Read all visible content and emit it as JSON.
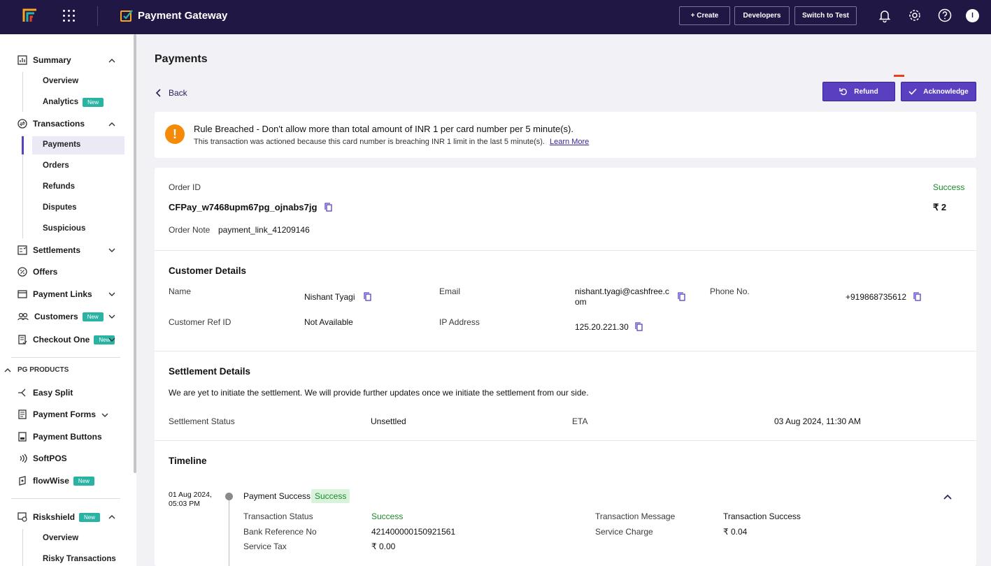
{
  "header": {
    "product_name": "Payment Gateway",
    "create_label": "+ Create",
    "developers_label": "Developers",
    "switch_label": "Switch to Test",
    "avatar_initial": "I",
    "brand_color": "#211745"
  },
  "sidebar": {
    "summary": "Summary",
    "overview": "Overview",
    "analytics": "Analytics",
    "transactions": "Transactions",
    "payments": "Payments",
    "orders": "Orders",
    "refunds": "Refunds",
    "disputes": "Disputes",
    "suspicious": "Suspicious",
    "settlements": "Settlements",
    "offers": "Offers",
    "payment_links": "Payment Links",
    "customers": "Customers",
    "checkout_one": "Checkout One",
    "pg_products": "PG PRODUCTS",
    "easy_split": "Easy Split",
    "payment_forms": "Payment Forms",
    "payment_buttons": "Payment Buttons",
    "softpos": "SoftPOS",
    "flowwise": "flowWise",
    "riskshield": "Riskshield",
    "rs_overview": "Overview",
    "risky_transactions": "Risky Transactions",
    "new_badge": "New"
  },
  "page": {
    "title": "Payments",
    "back": "Back",
    "refund": "Refund",
    "acknowledge": "Acknowledge"
  },
  "alert": {
    "title": "Rule Breached - Don't allow more than total amount of INR 1 per card number per 5 minute(s).",
    "body": "This transaction was actioned because this card number is breaching INR 1 limit in the last 5 minute(s).",
    "link": "Learn More"
  },
  "order": {
    "id_label": "Order ID",
    "id": "CFPay_w7468upm67pg_ojnabs7jg",
    "note_label": "Order Note",
    "note": "payment_link_41209146",
    "status": "Success",
    "amount": "₹ 2"
  },
  "customer": {
    "heading": "Customer Details",
    "name_label": "Name",
    "name": "Nishant Tyagi",
    "email_label": "Email",
    "email_line1": "nishant.tyagi@cashfree.c",
    "email_line2": "om",
    "phone_label": "Phone No.",
    "phone": "+919868735612",
    "ref_label": "Customer Ref ID",
    "ref": "Not Available",
    "ip_label": "IP Address",
    "ip": "125.20.221.30"
  },
  "settlement": {
    "heading": "Settlement Details",
    "message": "We are yet to initiate the settlement. We will provide further updates once we initiate the settlement from our side.",
    "status_label": "Settlement Status",
    "status": "Unsettled",
    "eta_label": "ETA",
    "eta": "03 Aug 2024, 11:30 AM"
  },
  "timeline": {
    "heading": "Timeline",
    "date": "01 Aug 2024,",
    "time": "05:03 PM",
    "event": "Payment Success",
    "event_badge": "Success",
    "tx_status_label": "Transaction Status",
    "tx_status": "Success",
    "bank_ref_label": "Bank Reference No",
    "bank_ref": "421400000150921561",
    "service_tax_label": "Service Tax",
    "service_tax": "₹ 0.00",
    "tx_msg_label": "Transaction Message",
    "tx_msg": "Transaction Success",
    "service_charge_label": "Service Charge",
    "service_charge": "₹ 0.04"
  }
}
